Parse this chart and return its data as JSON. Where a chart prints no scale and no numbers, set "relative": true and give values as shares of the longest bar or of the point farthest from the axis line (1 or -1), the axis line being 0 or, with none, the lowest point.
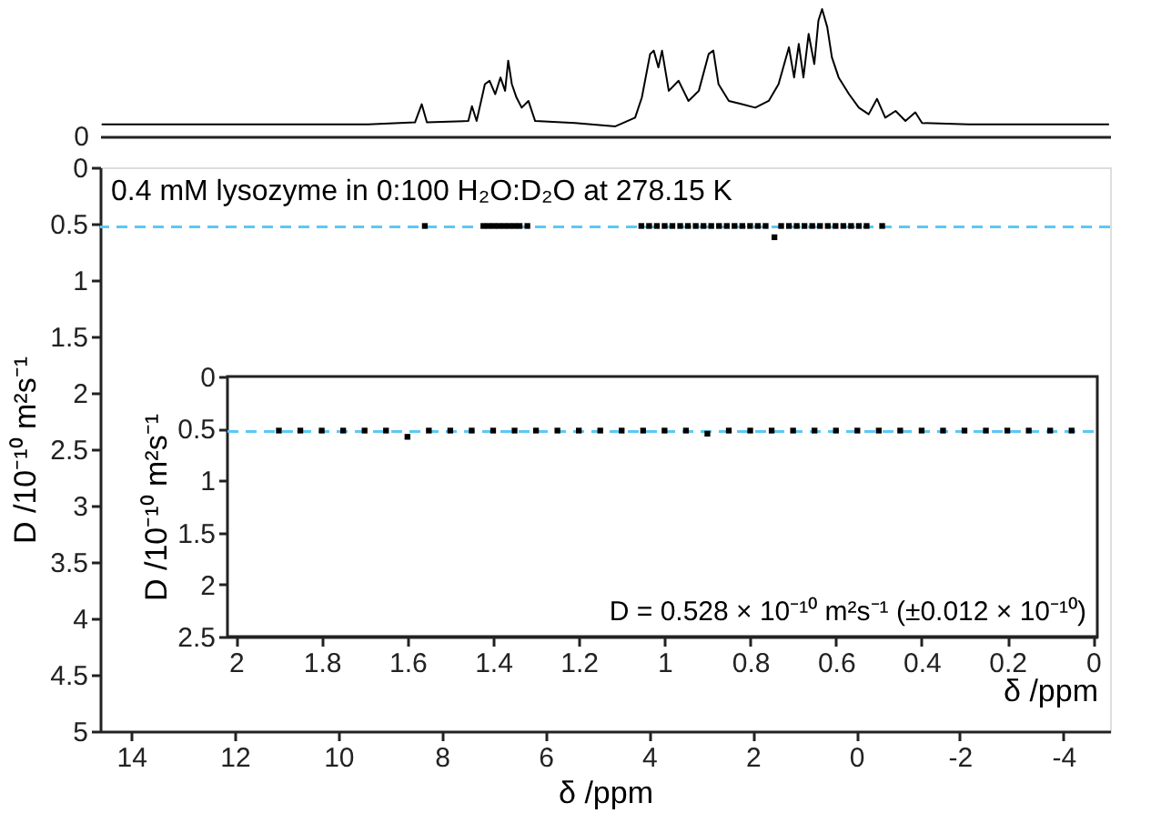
{
  "chart_data": [
    {
      "type": "line",
      "relative": true,
      "color": "#000000",
      "xlim": [
        14.6,
        -4.9
      ],
      "annotations": [
        "0"
      ],
      "x": [
        14.57,
        9.42,
        8.52,
        8.39,
        8.29,
        7.49,
        7.42,
        7.33,
        7.17,
        7.08,
        6.97,
        6.87,
        6.78,
        6.72,
        6.65,
        6.56,
        6.46,
        6.33,
        6.2,
        5.43,
        4.65,
        4.27,
        4.14,
        3.98,
        3.91,
        3.82,
        3.75,
        3.62,
        3.43,
        3.24,
        3.04,
        2.85,
        2.76,
        2.66,
        2.46,
        2.21,
        1.95,
        1.69,
        1.5,
        1.3,
        1.2,
        1.11,
        1.02,
        0.92,
        0.81,
        0.73,
        0.66,
        0.56,
        0.47,
        0.34,
        0.14,
        -0.05,
        -0.24,
        -0.4,
        -0.56,
        -0.76,
        -0.95,
        -1.14,
        -1.27,
        -2.17,
        -4.88
      ],
      "values": [
        0.095,
        0.095,
        0.11,
        0.253,
        0.111,
        0.121,
        0.237,
        0.121,
        0.411,
        0.437,
        0.332,
        0.463,
        0.358,
        0.595,
        0.411,
        0.305,
        0.226,
        0.279,
        0.121,
        0.105,
        0.079,
        0.147,
        0.305,
        0.647,
        0.674,
        0.542,
        0.674,
        0.358,
        0.437,
        0.279,
        0.358,
        0.647,
        0.674,
        0.411,
        0.279,
        0.253,
        0.226,
        0.279,
        0.411,
        0.7,
        0.463,
        0.726,
        0.463,
        0.805,
        0.568,
        0.911,
        1.0,
        0.858,
        0.621,
        0.463,
        0.332,
        0.226,
        0.174,
        0.295,
        0.147,
        0.2,
        0.121,
        0.189,
        0.105,
        0.095,
        0.095
      ]
    },
    {
      "type": "scatter",
      "color": "#000000",
      "marker": "square",
      "xlim": [
        14.6,
        -4.9
      ],
      "ylim": [
        5,
        0
      ],
      "xticks": [
        14,
        12,
        10,
        8,
        6,
        4,
        2,
        0,
        -2,
        -4
      ],
      "yticks": [
        0,
        0.5,
        1,
        1.5,
        2,
        2.5,
        3,
        3.5,
        4,
        4.5,
        5
      ],
      "xlabel": "δ /ppm",
      "ylabel": "D /10⁻¹⁰ m²s⁻¹",
      "annotations": [
        "0.4 mM lysozyme in 0:100 H₂O:D₂O at 278.15 K"
      ],
      "ref_lines": [
        {
          "axis": "y",
          "value": 0.528,
          "color": "#5bc8f5",
          "line_style": "dashed"
        }
      ],
      "x": [
        8.33,
        7.2,
        7.1,
        7.0,
        6.9,
        6.8,
        6.7,
        6.6,
        6.5,
        6.35,
        4.15,
        4.0,
        3.85,
        3.7,
        3.55,
        3.4,
        3.25,
        3.1,
        2.95,
        2.8,
        2.65,
        2.5,
        2.35,
        2.2,
        2.05,
        1.9,
        1.75,
        1.58,
        1.45,
        1.3,
        1.15,
        1.0,
        0.85,
        0.7,
        0.55,
        0.4,
        0.25,
        0.1,
        -0.05,
        -0.2,
        -0.5
      ],
      "values": [
        0.52,
        0.52,
        0.52,
        0.52,
        0.52,
        0.52,
        0.52,
        0.52,
        0.52,
        0.52,
        0.52,
        0.52,
        0.52,
        0.52,
        0.52,
        0.52,
        0.52,
        0.52,
        0.52,
        0.52,
        0.52,
        0.52,
        0.52,
        0.52,
        0.52,
        0.52,
        0.52,
        0.62,
        0.52,
        0.52,
        0.52,
        0.52,
        0.52,
        0.52,
        0.52,
        0.52,
        0.52,
        0.52,
        0.52,
        0.52,
        0.52
      ]
    },
    {
      "type": "scatter",
      "color": "#000000",
      "marker": "square",
      "xlim": [
        2.02,
        -0.01
      ],
      "ylim": [
        2.5,
        0
      ],
      "xticks": [
        2,
        1.8,
        1.6,
        1.4,
        1.2,
        1,
        0.8,
        0.6,
        0.4,
        0.2,
        0
      ],
      "yticks": [
        0,
        0.5,
        1,
        1.5,
        2,
        2.5
      ],
      "xlabel": "δ /ppm",
      "ylabel": "D /10⁻¹⁰ m²s⁻¹",
      "annotations": [
        "D = 0.528 × 10⁻¹⁰ m²s⁻¹ (±0.012 × 10⁻¹⁰)"
      ],
      "ref_lines": [
        {
          "axis": "y",
          "value": 0.528,
          "color": "#5bc8f5",
          "line_style": "dashed"
        }
      ],
      "x": [
        1.9,
        1.85,
        1.8,
        1.75,
        1.7,
        1.65,
        1.6,
        1.55,
        1.5,
        1.45,
        1.4,
        1.35,
        1.3,
        1.25,
        1.2,
        1.15,
        1.1,
        1.05,
        1.0,
        0.95,
        0.9,
        0.85,
        0.8,
        0.75,
        0.7,
        0.65,
        0.6,
        0.55,
        0.5,
        0.45,
        0.4,
        0.35,
        0.3,
        0.25,
        0.2,
        0.15,
        0.1,
        0.05
      ],
      "values": [
        0.52,
        0.52,
        0.52,
        0.52,
        0.52,
        0.52,
        0.58,
        0.52,
        0.52,
        0.52,
        0.52,
        0.52,
        0.52,
        0.52,
        0.52,
        0.52,
        0.52,
        0.52,
        0.52,
        0.52,
        0.55,
        0.52,
        0.52,
        0.52,
        0.52,
        0.52,
        0.52,
        0.52,
        0.52,
        0.52,
        0.52,
        0.52,
        0.52,
        0.52,
        0.52,
        0.52,
        0.52,
        0.52
      ]
    }
  ]
}
